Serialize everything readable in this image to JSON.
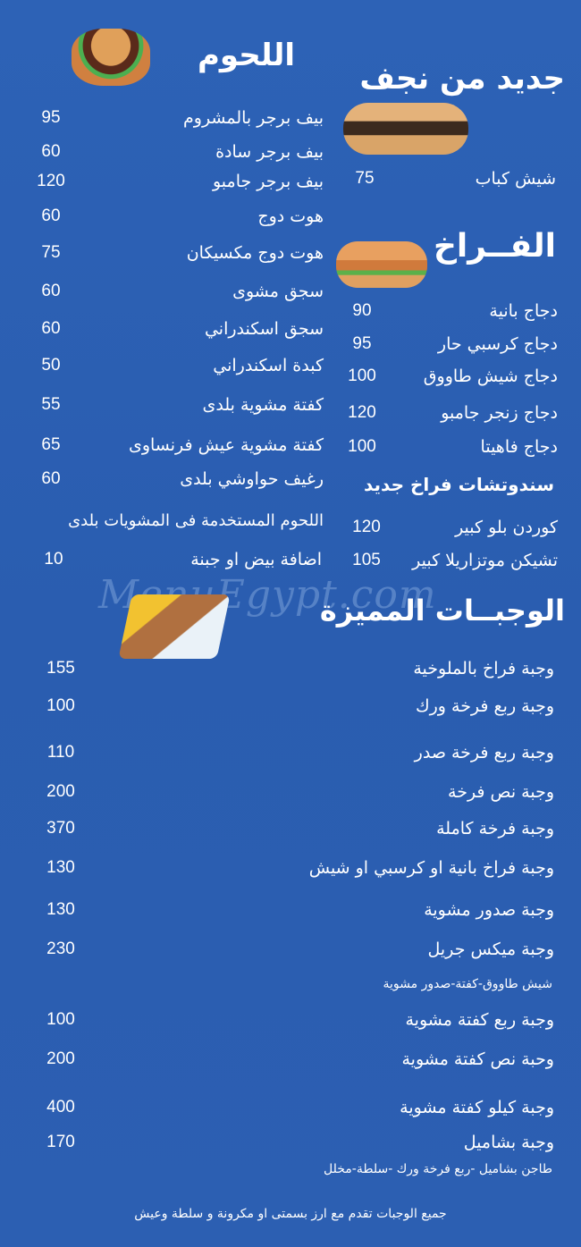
{
  "sections": {
    "new_from_najaf": {
      "title": "جديد من نجف",
      "items": [
        {
          "name": "شيش كباب",
          "price": "75"
        }
      ]
    },
    "meats": {
      "title": "اللحوم",
      "items": [
        {
          "name": "بيف برجر بالمشروم",
          "price": "95"
        },
        {
          "name": "بيف برجر سادة",
          "price": "60"
        },
        {
          "name": "بيف برجر جامبو",
          "price": "120"
        },
        {
          "name": "هوت دوج",
          "price": "60"
        },
        {
          "name": "هوت دوج مكسيكان",
          "price": "75"
        },
        {
          "name": "سجق مشوى",
          "price": "60"
        },
        {
          "name": "سجق اسكندراني",
          "price": "60"
        },
        {
          "name": "كبدة اسكندراني",
          "price": "50"
        },
        {
          "name": "كفتة مشوية بلدى",
          "price": "55"
        },
        {
          "name": "كفتة مشوية عيش فرنساوى",
          "price": "65"
        },
        {
          "name": "رغيف حواوشي بلدى",
          "price": "60"
        }
      ],
      "note": "اللحوم المستخدمة فى المشويات بلدى",
      "extra": {
        "name": "اضافة بيض او جبنة",
        "price": "10"
      }
    },
    "chicken": {
      "title": "الفــراخ",
      "items": [
        {
          "name": "دجاج بانية",
          "price": "90"
        },
        {
          "name": "دجاج كرسبي حار",
          "price": "95"
        },
        {
          "name": "دجاج شيش طاووق",
          "price": "100"
        },
        {
          "name": "دجاج زنجر جامبو",
          "price": "120"
        },
        {
          "name": "دجاج فاهيتا",
          "price": "100"
        }
      ]
    },
    "new_chicken_sandwiches": {
      "title": "سندوتشات فراخ جديد",
      "items": [
        {
          "name": "كوردن بلو كبير",
          "price": "120"
        },
        {
          "name": "تشيكن موتزاريلا كبير",
          "price": "105"
        }
      ]
    },
    "special_meals": {
      "title": "الوجبــات المميزة",
      "items": [
        {
          "name": "وجبة فراخ بالملوخية",
          "price": "155"
        },
        {
          "name": "وجبة ربع فرخة ورك",
          "price": "100"
        },
        {
          "name": "وجبة ربع فرخة صدر",
          "price": "110"
        },
        {
          "name": "وجبة نص فرخة",
          "price": "200"
        },
        {
          "name": "وجبة فرخة كاملة",
          "price": "370"
        },
        {
          "name": "وجبة فراخ بانية او كرسبي او شيش",
          "price": "130"
        },
        {
          "name": "وجبة صدور مشوية",
          "price": "130"
        },
        {
          "name": "وجبة ميكس جريل",
          "price": "230",
          "sub": "شيش طاووق-كفتة-صدور مشوية"
        },
        {
          "name": "وجبة ربع كفتة مشوية",
          "price": "100"
        },
        {
          "name": "وحبة نص كفتة مشوية",
          "price": "200"
        },
        {
          "name": "وجبة كيلو كفتة مشوية",
          "price": "400"
        },
        {
          "name": "وجبة بشاميل",
          "price": "170",
          "sub": "طاجن بشاميل -ربع فرخة ورك -سلطة-مخلل"
        }
      ],
      "footer": "جميع الوجبات تقدم مع ارز بسمتى او مكرونة و سلطة وعيش"
    }
  },
  "watermark": "MenuEgypt.com",
  "images": [
    "burger-image",
    "kebab-sandwich-image",
    "chicken-sandwich-image",
    "meal-plate-image"
  ],
  "colors": {
    "background": "#2b5eb2",
    "text": "#ffffff"
  }
}
